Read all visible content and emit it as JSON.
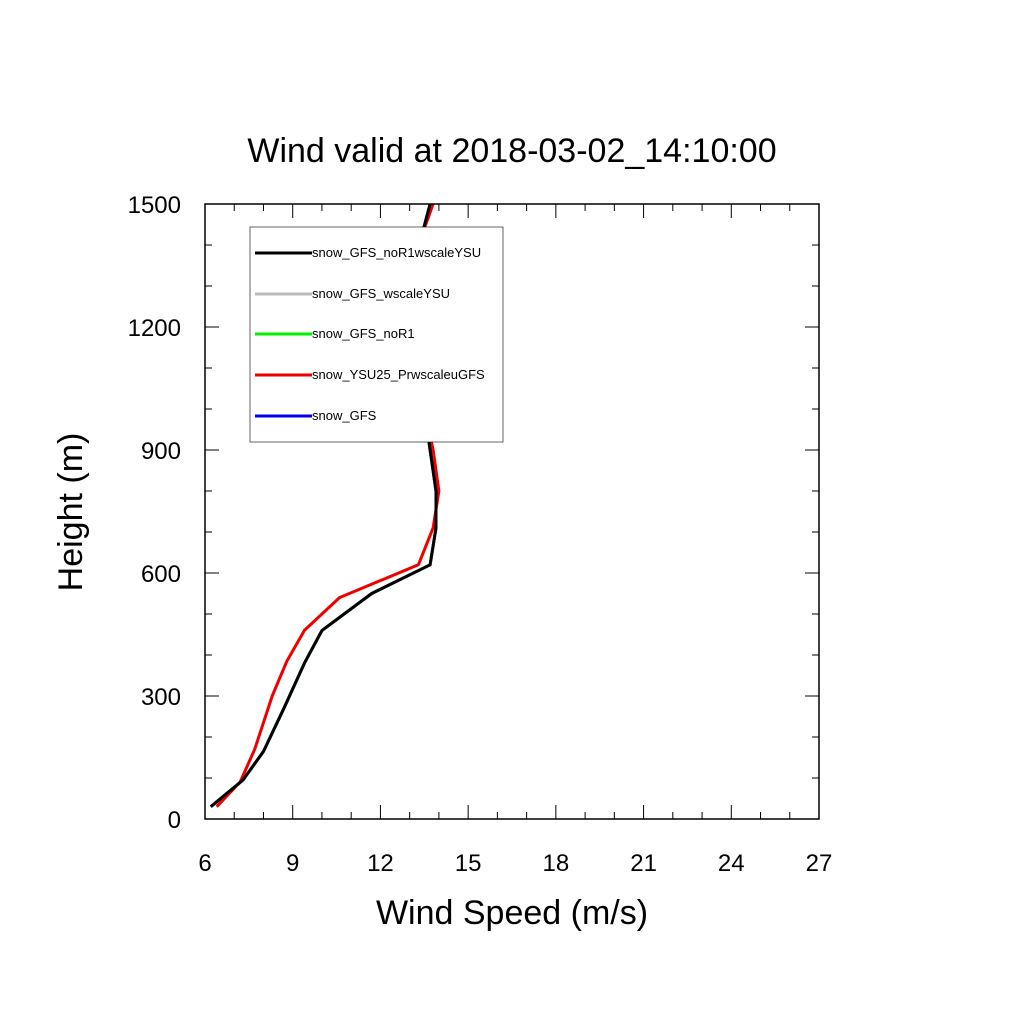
{
  "chart_data": {
    "type": "line",
    "title": "Wind valid at 2018-03-02_14:10:00",
    "xlabel": "Wind Speed (m/s)",
    "ylabel": "Height (m)",
    "xlim": [
      6,
      27
    ],
    "ylim": [
      0,
      1500
    ],
    "x_ticks": [
      "6",
      "9",
      "12",
      "15",
      "18",
      "21",
      "24",
      "27"
    ],
    "y_ticks": [
      "0",
      "300",
      "600",
      "900",
      "1200",
      "1500"
    ],
    "grid": false,
    "legend_position": "top-left",
    "series": [
      {
        "name": "snow_GFS_noR1wscaleYSU",
        "color": "#000000",
        "points": [
          [
            6.2,
            30
          ],
          [
            7.3,
            95
          ],
          [
            8.0,
            165
          ],
          [
            8.7,
            270
          ],
          [
            9.4,
            380
          ],
          [
            10.0,
            460
          ],
          [
            11.7,
            550
          ],
          [
            13.7,
            620
          ],
          [
            13.9,
            710
          ],
          [
            13.9,
            800
          ],
          [
            13.7,
            900
          ],
          [
            13.5,
            1000
          ],
          [
            13.2,
            1100
          ],
          [
            13.0,
            1210
          ],
          [
            13.2,
            1330
          ],
          [
            13.4,
            1420
          ],
          [
            13.7,
            1500
          ]
        ]
      },
      {
        "name": "snow_GFS_wscaleYSU",
        "color": "#bbbbbb",
        "points": [
          [
            6.2,
            30
          ],
          [
            7.3,
            95
          ],
          [
            8.0,
            165
          ],
          [
            8.7,
            270
          ],
          [
            9.4,
            380
          ],
          [
            10.0,
            460
          ],
          [
            11.7,
            550
          ],
          [
            13.7,
            620
          ],
          [
            13.9,
            710
          ],
          [
            13.9,
            800
          ],
          [
            13.7,
            900
          ],
          [
            13.5,
            1000
          ],
          [
            13.2,
            1100
          ],
          [
            13.0,
            1210
          ],
          [
            13.2,
            1330
          ],
          [
            13.4,
            1420
          ],
          [
            13.7,
            1500
          ]
        ]
      },
      {
        "name": "snow_GFS_noR1",
        "color": "#00ee00",
        "points": [
          [
            6.2,
            30
          ],
          [
            7.3,
            95
          ],
          [
            8.0,
            165
          ],
          [
            8.7,
            270
          ],
          [
            9.4,
            380
          ],
          [
            10.0,
            460
          ],
          [
            11.7,
            550
          ],
          [
            13.7,
            620
          ],
          [
            13.9,
            710
          ],
          [
            13.9,
            800
          ],
          [
            13.7,
            900
          ],
          [
            13.5,
            1000
          ],
          [
            13.2,
            1100
          ],
          [
            13.0,
            1210
          ],
          [
            13.2,
            1330
          ],
          [
            13.4,
            1420
          ],
          [
            13.7,
            1500
          ]
        ]
      },
      {
        "name": "snow_YSU25_PrwscaleuGFS",
        "color": "#ee0000",
        "points": [
          [
            6.4,
            30
          ],
          [
            7.2,
            90
          ],
          [
            7.7,
            170
          ],
          [
            8.3,
            300
          ],
          [
            8.8,
            385
          ],
          [
            9.4,
            460
          ],
          [
            10.6,
            540
          ],
          [
            13.3,
            620
          ],
          [
            13.8,
            710
          ],
          [
            14.0,
            800
          ],
          [
            13.8,
            900
          ],
          [
            13.5,
            1000
          ],
          [
            13.1,
            1100
          ],
          [
            13.0,
            1210
          ],
          [
            13.2,
            1330
          ],
          [
            13.4,
            1420
          ],
          [
            13.8,
            1500
          ]
        ]
      },
      {
        "name": "snow_GFS",
        "color": "#0000ee",
        "points": [
          [
            6.2,
            30
          ],
          [
            7.3,
            95
          ],
          [
            8.0,
            165
          ],
          [
            8.7,
            270
          ],
          [
            9.4,
            380
          ],
          [
            10.0,
            460
          ],
          [
            11.7,
            550
          ],
          [
            13.7,
            620
          ],
          [
            13.9,
            710
          ],
          [
            13.9,
            800
          ],
          [
            13.7,
            900
          ],
          [
            13.5,
            1000
          ],
          [
            13.2,
            1100
          ],
          [
            13.0,
            1210
          ],
          [
            13.2,
            1330
          ],
          [
            13.4,
            1420
          ],
          [
            13.7,
            1500
          ]
        ]
      }
    ]
  }
}
